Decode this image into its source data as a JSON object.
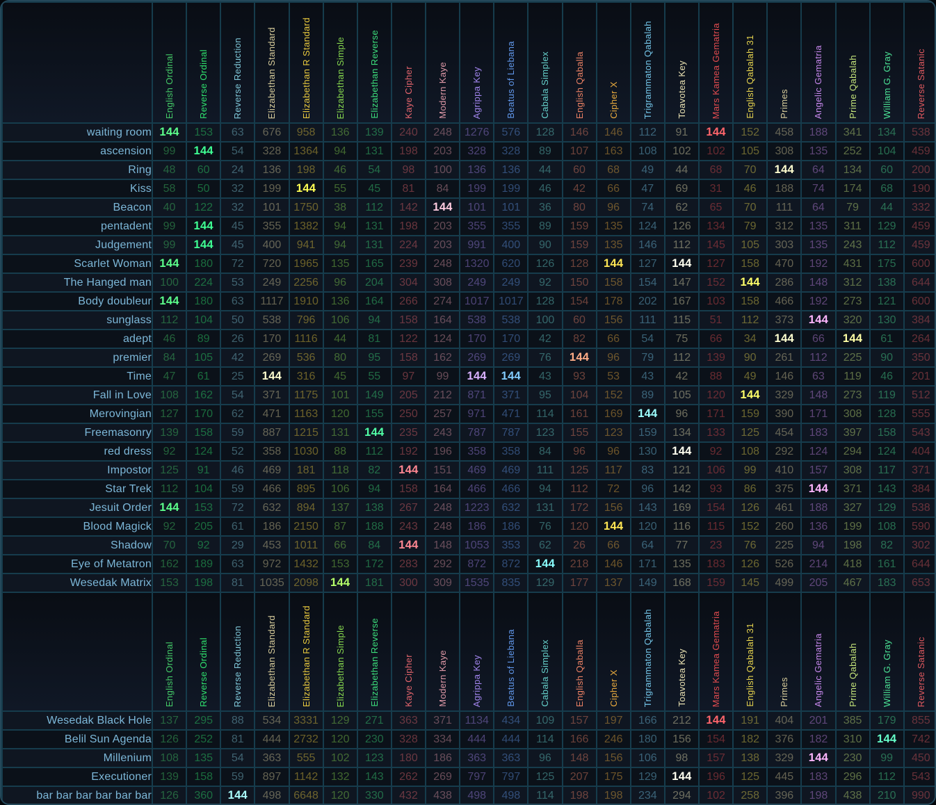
{
  "table": {
    "highlight_value": 144,
    "columns": [
      {
        "label": "English Ordinal",
        "color": "#44ca67"
      },
      {
        "label": "Reverse Ordinal",
        "color": "#2fe16d"
      },
      {
        "label": "Reverse Reduction",
        "color": "#7fc7d8"
      },
      {
        "label": "Elizabethan Standard",
        "color": "#d6cb9a"
      },
      {
        "label": "Elizabethan R Standard",
        "color": "#e9c93e"
      },
      {
        "label": "Elizabethan Simple",
        "color": "#86d74e"
      },
      {
        "label": "Elizabethan Reverse",
        "color": "#3cdd7b"
      },
      {
        "label": "Kaye Cipher",
        "color": "#e2646c"
      },
      {
        "label": "Modern Kaye",
        "color": "#dd97a6"
      },
      {
        "label": "Agrippa Key",
        "color": "#a184ec"
      },
      {
        "label": "Beatus of Liebana",
        "color": "#6198ec"
      },
      {
        "label": "Cabala Simplex",
        "color": "#66d0cb"
      },
      {
        "label": "English Qaballa",
        "color": "#ea8064"
      },
      {
        "label": "Cipher X",
        "color": "#e9aa3e"
      },
      {
        "label": "Trigrammaton Qabalah",
        "color": "#74c6e9"
      },
      {
        "label": "Toavotea Key",
        "color": "#e9e1b2"
      },
      {
        "label": "Mars Kamea Gematria",
        "color": "#e14b4f"
      },
      {
        "label": "English Qabalah 31",
        "color": "#e7d44e"
      },
      {
        "label": "Primes",
        "color": "#d6cb9a"
      },
      {
        "label": "Angelic Gematria",
        "color": "#c687ec"
      },
      {
        "label": "Prime Qabalah",
        "color": "#c4e47a"
      },
      {
        "label": "William G. Gray",
        "color": "#4be295"
      },
      {
        "label": "Reverse Satanic",
        "color": "#e0595f"
      }
    ],
    "sections": [
      {
        "name": "main",
        "rows": [
          {
            "label": "waiting room",
            "values": [
              144,
              153,
              63,
              676,
              958,
              136,
              139,
              240,
              248,
              1276,
              576,
              128,
              146,
              146,
              112,
              91,
              144,
              152,
              458,
              188,
              341,
              134,
              538
            ]
          },
          {
            "label": "ascension",
            "values": [
              99,
              144,
              54,
              328,
              1364,
              94,
              131,
              198,
              203,
              328,
              328,
              89,
              107,
              163,
              108,
              102,
              102,
              105,
              308,
              135,
              252,
              104,
              459
            ]
          },
          {
            "label": "Ring",
            "values": [
              48,
              60,
              24,
              136,
              198,
              46,
              54,
              98,
              100,
              136,
              136,
              44,
              60,
              68,
              49,
              44,
              68,
              70,
              144,
              64,
              134,
              60,
              200
            ]
          },
          {
            "label": "Kiss",
            "values": [
              58,
              50,
              32,
              199,
              144,
              55,
              45,
              81,
              84,
              199,
              199,
              46,
              42,
              66,
              47,
              69,
              31,
              46,
              188,
              74,
              174,
              68,
              190
            ]
          },
          {
            "label": "Beacon",
            "values": [
              40,
              122,
              32,
              101,
              1750,
              38,
              112,
              142,
              144,
              101,
              101,
              36,
              80,
              96,
              74,
              62,
              65,
              70,
              111,
              64,
              79,
              44,
              332
            ]
          },
          {
            "label": "pentadent",
            "values": [
              99,
              144,
              45,
              355,
              1382,
              94,
              131,
              198,
              203,
              355,
              355,
              89,
              159,
              135,
              124,
              126,
              134,
              79,
              312,
              135,
              311,
              129,
              459
            ]
          },
          {
            "label": "Judgement",
            "values": [
              99,
              144,
              45,
              400,
              941,
              94,
              131,
              224,
              203,
              991,
              400,
              90,
              159,
              135,
              146,
              112,
              145,
              105,
              303,
              135,
              243,
              112,
              459
            ]
          },
          {
            "label": "Scarlet Woman",
            "values": [
              144,
              180,
              72,
              720,
              1965,
              135,
              165,
              239,
              248,
              1320,
              620,
              126,
              128,
              144,
              127,
              144,
              127,
              158,
              470,
              192,
              431,
              175,
              600
            ]
          },
          {
            "label": "The Hanged man",
            "values": [
              100,
              224,
              53,
              249,
              2256,
              96,
              204,
              304,
              308,
              249,
              249,
              92,
              150,
              158,
              154,
              147,
              152,
              144,
              286,
              148,
              312,
              138,
              644
            ]
          },
          {
            "label": "Body doubleur",
            "values": [
              144,
              180,
              63,
              1117,
              1910,
              136,
              164,
              266,
              274,
              1017,
              1017,
              128,
              154,
              178,
              202,
              167,
              103,
              158,
              466,
              192,
              273,
              121,
              600
            ]
          },
          {
            "label": "sunglass",
            "values": [
              112,
              104,
              50,
              538,
              796,
              106,
              94,
              158,
              164,
              538,
              538,
              100,
              60,
              156,
              111,
              115,
              51,
              112,
              373,
              144,
              320,
              130,
              384
            ]
          },
          {
            "label": "adept",
            "values": [
              46,
              89,
              26,
              170,
              1116,
              44,
              81,
              122,
              124,
              170,
              170,
              42,
              82,
              66,
              54,
              75,
              66,
              34,
              144,
              66,
              144,
              61,
              264
            ]
          },
          {
            "label": "premier",
            "values": [
              84,
              105,
              42,
              269,
              536,
              80,
              95,
              158,
              162,
              269,
              269,
              76,
              144,
              96,
              79,
              112,
              139,
              90,
              261,
              112,
              225,
              90,
              350
            ]
          },
          {
            "label": "Time",
            "values": [
              47,
              61,
              25,
              144,
              316,
              45,
              55,
              97,
              99,
              144,
              144,
              43,
              93,
              53,
              43,
              42,
              88,
              49,
              146,
              63,
              119,
              46,
              201
            ]
          },
          {
            "label": "Fall in Love",
            "values": [
              108,
              162,
              54,
              371,
              1175,
              101,
              149,
              205,
              212,
              871,
              371,
              95,
              104,
              152,
              89,
              105,
              120,
              144,
              329,
              148,
              273,
              119,
              512
            ]
          },
          {
            "label": "Merovingian",
            "values": [
              127,
              170,
              62,
              471,
              1163,
              120,
              155,
              250,
              257,
              971,
              471,
              114,
              161,
              169,
              144,
              96,
              171,
              159,
              390,
              171,
              308,
              128,
              555
            ]
          },
          {
            "label": "Freemasonry",
            "values": [
              139,
              158,
              59,
              887,
              1215,
              131,
              144,
              235,
              243,
              787,
              787,
              123,
              155,
              123,
              159,
              134,
              133,
              125,
              454,
              183,
              397,
              158,
              543
            ]
          },
          {
            "label": "red dress",
            "values": [
              92,
              124,
              52,
              358,
              1030,
              88,
              112,
              192,
              196,
              358,
              358,
              84,
              96,
              96,
              130,
              144,
              92,
              108,
              292,
              124,
              294,
              124,
              404
            ]
          },
          {
            "label": "Impostor",
            "values": [
              125,
              91,
              46,
              469,
              181,
              118,
              82,
              144,
              151,
              469,
              469,
              111,
              125,
              117,
              83,
              121,
              106,
              99,
              410,
              157,
              308,
              117,
              371
            ]
          },
          {
            "label": "Star Trek",
            "values": [
              112,
              104,
              59,
              466,
              895,
              106,
              94,
              158,
              164,
              466,
              466,
              94,
              112,
              72,
              96,
              142,
              93,
              86,
              375,
              144,
              371,
              143,
              384
            ]
          },
          {
            "label": "Jesuit Order",
            "values": [
              144,
              153,
              72,
              632,
              894,
              137,
              138,
              267,
              248,
              1223,
              632,
              131,
              172,
              156,
              143,
              169,
              154,
              126,
              461,
              188,
              327,
              129,
              538
            ]
          },
          {
            "label": "Blood Magick",
            "values": [
              92,
              205,
              61,
              186,
              2150,
              87,
              188,
              243,
              248,
              186,
              186,
              76,
              120,
              144,
              120,
              116,
              115,
              152,
              260,
              136,
              199,
              108,
              590
            ]
          },
          {
            "label": "Shadow",
            "values": [
              70,
              92,
              29,
              453,
              1011,
              66,
              84,
              144,
              148,
              1053,
              353,
              62,
              26,
              66,
              64,
              77,
              23,
              76,
              225,
              94,
              198,
              82,
              302
            ]
          },
          {
            "label": "Eye of Metatron",
            "values": [
              162,
              189,
              63,
              972,
              1432,
              153,
              172,
              283,
              292,
              872,
              872,
              144,
              218,
              146,
              171,
              135,
              183,
              126,
              526,
              214,
              418,
              161,
              644
            ]
          },
          {
            "label": "Wesedak Matrix",
            "values": [
              153,
              198,
              81,
              1035,
              2098,
              144,
              181,
              300,
              309,
              1535,
              835,
              129,
              177,
              137,
              149,
              168,
              159,
              145,
              499,
              205,
              467,
              183,
              653
            ]
          }
        ]
      },
      {
        "name": "bottom",
        "rows": [
          {
            "label": "Wesedak Black Hole",
            "values": [
              137,
              295,
              88,
              534,
              3331,
              129,
              271,
              363,
              371,
              1134,
              434,
              109,
              157,
              197,
              166,
              212,
              144,
              191,
              404,
              201,
              385,
              179,
              855
            ]
          },
          {
            "label": "Belil Sun Agenda",
            "values": [
              126,
              252,
              81,
              444,
              2732,
              120,
              230,
              328,
              334,
              444,
              444,
              114,
              166,
              246,
              180,
              156,
              154,
              182,
              376,
              182,
              310,
              144,
              742
            ]
          },
          {
            "label": "Millenium",
            "values": [
              108,
              135,
              54,
              363,
              555,
              102,
              123,
              180,
              186,
              363,
              363,
              96,
              148,
              156,
              106,
              98,
              157,
              138,
              329,
              144,
              230,
              99,
              450
            ]
          },
          {
            "label": "Executioner",
            "values": [
              139,
              158,
              59,
              897,
              1142,
              132,
              143,
              262,
              269,
              797,
              797,
              125,
              207,
              175,
              129,
              144,
              196,
              125,
              445,
              183,
              296,
              112,
              543
            ]
          },
          {
            "label": "bar bar bar bar bar bar",
            "values": [
              126,
              360,
              144,
              498,
              6648,
              120,
              330,
              432,
              438,
              498,
              498,
              114,
              198,
              198,
              234,
              294,
              102,
              258,
              396,
              198,
              438,
              210,
              990
            ]
          }
        ]
      }
    ]
  }
}
